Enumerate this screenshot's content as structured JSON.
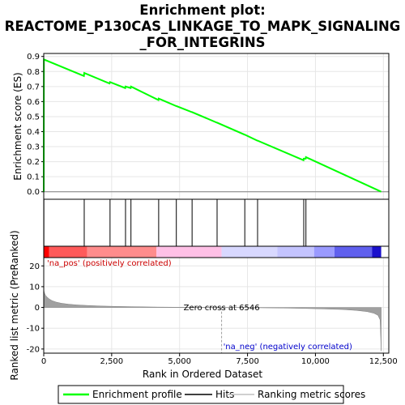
{
  "chart_data": {
    "type": "line",
    "title_lines": [
      "Enrichment plot:",
      "REACTOME_P130CAS_LINKAGE_TO_MAPK_SIGNALING",
      "_FOR_INTEGRINS"
    ],
    "top_panel": {
      "ylabel": "Enrichment score (ES)",
      "ylim": [
        -0.05,
        0.92
      ],
      "yticks": [
        "0.0",
        "0.1",
        "0.2",
        "0.3",
        "0.4",
        "0.5",
        "0.6",
        "0.7",
        "0.8",
        "0.9"
      ],
      "series": {
        "name": "Enrichment profile",
        "color": "#00ff00",
        "x": [
          0,
          5,
          1480,
          1490,
          2420,
          2440,
          3000,
          3010,
          3200,
          3210,
          4220,
          4230,
          4870,
          4880,
          5450,
          5460,
          6370,
          6380,
          7390,
          7400,
          7860,
          7870,
          9560,
          9570,
          9640,
          9650,
          12420
        ],
        "y": [
          0.0,
          0.88,
          0.77,
          0.79,
          0.72,
          0.73,
          0.69,
          0.7,
          0.69,
          0.7,
          0.61,
          0.62,
          0.57,
          0.57,
          0.53,
          0.53,
          0.46,
          0.46,
          0.38,
          0.38,
          0.34,
          0.34,
          0.21,
          0.22,
          0.22,
          0.23,
          0.0
        ]
      }
    },
    "hits": {
      "name": "Hits",
      "x": [
        5,
        1490,
        2440,
        3010,
        3210,
        4230,
        4880,
        5460,
        6380,
        7400,
        7870,
        9570,
        9650
      ]
    },
    "bottom_panel": {
      "ylabel": "Ranked list metric (PreRanked)",
      "ylim": [
        -22,
        24
      ],
      "yticks": [
        "-20",
        "-10",
        "0",
        "10",
        "20"
      ],
      "series_name": "Ranking metric scores",
      "zero_cross": 6546,
      "zero_cross_label": "Zero cross at 6546",
      "pos_label": "'na_pos' (positively correlated)",
      "neg_label": "'na_neg' (negatively correlated)",
      "metric_curve": {
        "x": [
          0,
          20,
          60,
          120,
          200,
          300,
          450,
          650,
          900,
          1200,
          1600,
          2100,
          2700,
          3400,
          4200,
          5000,
          5800,
          6546,
          7300,
          8000,
          8800,
          9600,
          10300,
          11000,
          11500,
          11900,
          12150,
          12300,
          12380,
          12420
        ],
        "y": [
          8.5,
          7.2,
          6.0,
          5.0,
          4.1,
          3.3,
          2.6,
          2.0,
          1.6,
          1.25,
          0.95,
          0.7,
          0.5,
          0.35,
          0.2,
          0.1,
          0.04,
          0.0,
          -0.08,
          -0.18,
          -0.3,
          -0.48,
          -0.7,
          -1.0,
          -1.4,
          -2.0,
          -2.8,
          -3.8,
          -6.0,
          -21.0
        ]
      }
    },
    "xaxis": {
      "xlabel": "Rank in Ordered Dataset",
      "xlim": [
        0,
        12700
      ],
      "xticks": [
        "0",
        "2,500",
        "5,000",
        "7,500",
        "10,000",
        "12,500"
      ]
    },
    "heatmap_bands": [
      {
        "x0": 0,
        "x1": 200,
        "color": "#ff0000"
      },
      {
        "x0": 200,
        "x1": 1600,
        "color": "#ff5a5a"
      },
      {
        "x0": 1600,
        "x1": 4150,
        "color": "#ff8c8c"
      },
      {
        "x0": 4150,
        "x1": 6546,
        "color": "#ffc0e6"
      },
      {
        "x0": 6546,
        "x1": 8600,
        "color": "#d8d8ff"
      },
      {
        "x0": 8600,
        "x1": 9950,
        "color": "#c4c4ff"
      },
      {
        "x0": 9950,
        "x1": 10700,
        "color": "#9a9aff"
      },
      {
        "x0": 10700,
        "x1": 12080,
        "color": "#6060ee"
      },
      {
        "x0": 12080,
        "x1": 12420,
        "color": "#1a10cc"
      }
    ],
    "legend": [
      {
        "label": "Enrichment profile",
        "color": "#00ff00"
      },
      {
        "label": "Hits",
        "color": "#000000"
      },
      {
        "label": "Ranking metric scores",
        "color": "#c0c0c0"
      }
    ],
    "colors": {
      "pos_label": "#cc0000",
      "neg_label": "#0000cc",
      "grid": "#e6e6e6",
      "metric_fill": "#a0a0a0"
    }
  }
}
